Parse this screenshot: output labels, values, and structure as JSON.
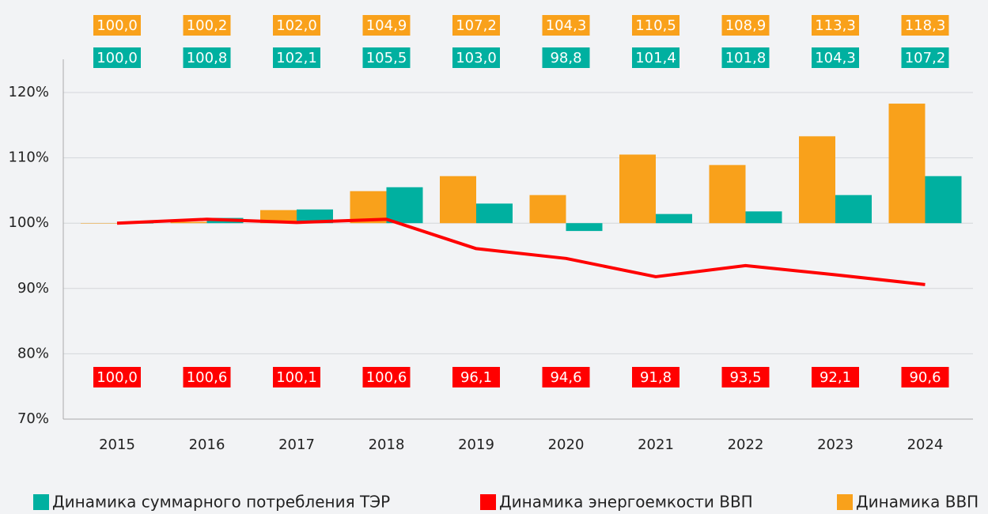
{
  "chart_data": {
    "type": "bar",
    "categories": [
      "2015",
      "2016",
      "2017",
      "2018",
      "2019",
      "2020",
      "2021",
      "2022",
      "2023",
      "2024"
    ],
    "series": [
      {
        "name": "Динамика суммарного потребления ТЭР",
        "type": "bar",
        "color": "#00b0a0",
        "values": [
          100.0,
          100.8,
          102.1,
          105.5,
          103.0,
          98.8,
          101.4,
          101.8,
          104.3,
          107.2
        ],
        "value_labels": [
          "100,0",
          "100,8",
          "102,1",
          "105,5",
          "103,0",
          "98,8",
          "101,4",
          "101,8",
          "104,3",
          "107,2"
        ]
      },
      {
        "name": "Динамика энергоемкости ВВП",
        "type": "line",
        "color": "#ff0000",
        "values": [
          100.0,
          100.6,
          100.1,
          100.6,
          96.1,
          94.6,
          91.8,
          93.5,
          92.1,
          90.6
        ],
        "value_labels": [
          "100,0",
          "100,6",
          "100,1",
          "100,6",
          "96,1",
          "94,6",
          "91,8",
          "93,5",
          "92,1",
          "90,6"
        ]
      },
      {
        "name": "Динамика ВВП",
        "type": "bar",
        "color": "#f9a11b",
        "values": [
          100.0,
          100.2,
          102.0,
          104.9,
          107.2,
          104.3,
          110.5,
          108.9,
          113.3,
          118.3
        ],
        "value_labels": [
          "100,0",
          "100,2",
          "102,0",
          "104,9",
          "107,2",
          "104,3",
          "110,5",
          "108,9",
          "113,3",
          "118,3"
        ]
      }
    ],
    "bar_baseline": 100,
    "ylim": [
      70,
      120
    ],
    "yticks": [
      {
        "value": 70,
        "label": "70%"
      },
      {
        "value": 80,
        "label": "80%"
      },
      {
        "value": 90,
        "label": "90%"
      },
      {
        "value": 100,
        "label": "100%"
      },
      {
        "value": 110,
        "label": "110%"
      },
      {
        "value": 120,
        "label": "120%"
      }
    ],
    "grid": true,
    "legend": "bottom"
  }
}
